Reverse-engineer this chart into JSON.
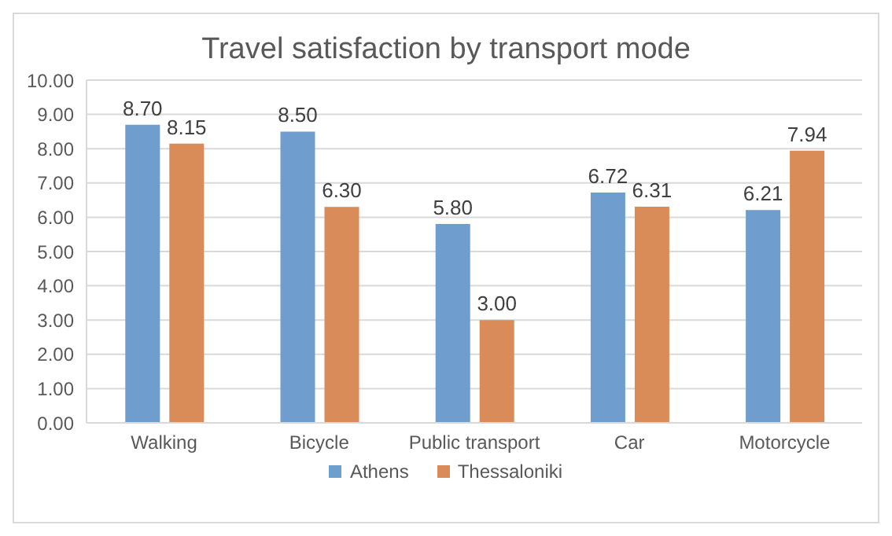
{
  "chart_data": {
    "type": "bar",
    "title": "Travel satisfaction by transport mode",
    "categories": [
      "Walking",
      "Bicycle",
      "Public transport",
      "Car",
      "Motorcycle"
    ],
    "series": [
      {
        "name": "Athens",
        "color": "#6f9dcd",
        "values": [
          8.7,
          8.5,
          5.8,
          6.72,
          6.21
        ],
        "value_labels": [
          "8.70",
          "8.50",
          "5.80",
          "6.72",
          "6.21"
        ]
      },
      {
        "name": "Thessaloniki",
        "color": "#d98c58",
        "values": [
          8.15,
          6.3,
          3.0,
          6.31,
          7.94
        ],
        "value_labels": [
          "8.15",
          "6.30",
          "3.00",
          "6.31",
          "7.94"
        ]
      }
    ],
    "ylim": [
      0,
      10
    ],
    "yticks": [
      {
        "value": 0,
        "label": "0.00"
      },
      {
        "value": 1,
        "label": "1.00"
      },
      {
        "value": 2,
        "label": "2.00"
      },
      {
        "value": 3,
        "label": "3.00"
      },
      {
        "value": 4,
        "label": "4.00"
      },
      {
        "value": 5,
        "label": "5.00"
      },
      {
        "value": 6,
        "label": "6.00"
      },
      {
        "value": 7,
        "label": "7.00"
      },
      {
        "value": 8,
        "label": "8.00"
      },
      {
        "value": 9,
        "label": "9.00"
      },
      {
        "value": 10,
        "label": "10.00"
      }
    ],
    "grid": "y",
    "legend": "bottom"
  }
}
